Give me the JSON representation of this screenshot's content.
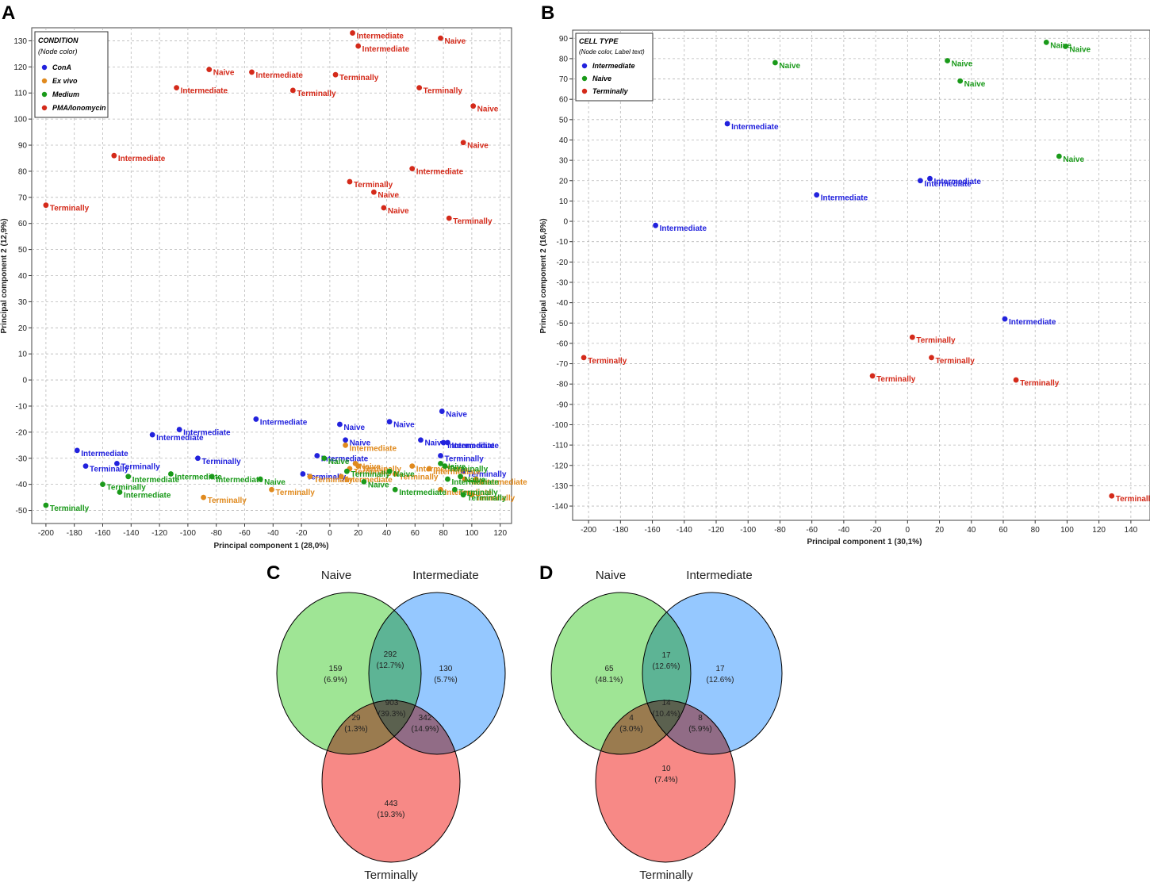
{
  "chart_data": [
    {
      "panel": "A",
      "type": "scatter",
      "xlabel": "Principal component 1 (28,0%)",
      "ylabel": "Principal component 2 (12,9%)",
      "xlim": [
        -210,
        128
      ],
      "ylim": [
        -55,
        135
      ],
      "xticks": [
        -200,
        -180,
        -160,
        -140,
        -120,
        -100,
        -80,
        -60,
        -40,
        -20,
        0,
        20,
        40,
        60,
        80,
        100,
        120
      ],
      "yticks": [
        -50,
        -40,
        -30,
        -20,
        -10,
        0,
        10,
        20,
        30,
        40,
        50,
        60,
        70,
        80,
        90,
        100,
        110,
        120,
        130
      ],
      "grid": true,
      "legend": {
        "title": "CONDITION",
        "subtitle": "(Node color)",
        "location": "top-left",
        "entries": [
          {
            "name": "ConA",
            "color": "#2222dd"
          },
          {
            "name": "Ex vivo",
            "color": "#e08a1e"
          },
          {
            "name": "Medium",
            "color": "#1a9a1a"
          },
          {
            "name": "PMA/Ionomycin",
            "color": "#d42a1a"
          }
        ]
      },
      "series": [
        {
          "name": "PMA/Ionomycin",
          "color": "#d42a1a",
          "points": [
            {
              "x": 16,
              "y": 133,
              "label": "Intermediate"
            },
            {
              "x": 20,
              "y": 128,
              "label": "Intermediate"
            },
            {
              "x": 78,
              "y": 131,
              "label": "Naive"
            },
            {
              "x": -85,
              "y": 119,
              "label": "Naive"
            },
            {
              "x": -55,
              "y": 118,
              "label": "Intermediate"
            },
            {
              "x": 4,
              "y": 117,
              "label": "Terminally"
            },
            {
              "x": -108,
              "y": 112,
              "label": "Intermediate"
            },
            {
              "x": -26,
              "y": 111,
              "label": "Terminally"
            },
            {
              "x": 63,
              "y": 112,
              "label": "Terminally"
            },
            {
              "x": 101,
              "y": 105,
              "label": "Naive"
            },
            {
              "x": 94,
              "y": 91,
              "label": "Naive"
            },
            {
              "x": -152,
              "y": 86,
              "label": "Intermediate"
            },
            {
              "x": 58,
              "y": 81,
              "label": "Intermediate"
            },
            {
              "x": 14,
              "y": 76,
              "label": "Terminally"
            },
            {
              "x": 31,
              "y": 72,
              "label": "Naive"
            },
            {
              "x": 38,
              "y": 66,
              "label": "Naive"
            },
            {
              "x": 84,
              "y": 62,
              "label": "Terminally"
            },
            {
              "x": -200,
              "y": 67,
              "label": "Terminally"
            }
          ]
        },
        {
          "name": "ConA",
          "color": "#2222dd",
          "points": [
            {
              "x": 79,
              "y": -12,
              "label": "Naive"
            },
            {
              "x": -52,
              "y": -15,
              "label": "Intermediate"
            },
            {
              "x": 42,
              "y": -16,
              "label": "Naive"
            },
            {
              "x": 7,
              "y": -17,
              "label": "Naive"
            },
            {
              "x": -106,
              "y": -19,
              "label": "Intermediate"
            },
            {
              "x": -125,
              "y": -21,
              "label": "Intermediate"
            },
            {
              "x": 11,
              "y": -23,
              "label": "Naive"
            },
            {
              "x": 64,
              "y": -23,
              "label": "Naive"
            },
            {
              "x": 80,
              "y": -24,
              "label": "Intermediate"
            },
            {
              "x": 83,
              "y": -24,
              "label": "Intermediate"
            },
            {
              "x": -178,
              "y": -27,
              "label": "Intermediate"
            },
            {
              "x": -9,
              "y": -29,
              "label": "Intermediate"
            },
            {
              "x": 78,
              "y": -29,
              "label": "Terminally"
            },
            {
              "x": -93,
              "y": -30,
              "label": "Terminally"
            },
            {
              "x": -150,
              "y": -32,
              "label": "Terminally"
            },
            {
              "x": -172,
              "y": -33,
              "label": "Terminally"
            },
            {
              "x": 94,
              "y": -35,
              "label": "Terminally"
            },
            {
              "x": -19,
              "y": -36,
              "label": "Terminally"
            }
          ]
        },
        {
          "name": "Ex vivo",
          "color": "#e08a1e",
          "points": [
            {
              "x": 18,
              "y": -32,
              "label": "Naive"
            },
            {
              "x": 20,
              "y": -33,
              "label": "Terminally"
            },
            {
              "x": 58,
              "y": -33,
              "label": "Intermediate"
            },
            {
              "x": 11,
              "y": -25,
              "label": "Intermediate"
            },
            {
              "x": 14,
              "y": -34,
              "label": "Terminally"
            },
            {
              "x": -14,
              "y": -37,
              "label": "Terminally"
            },
            {
              "x": 8,
              "y": -37,
              "label": "Intermediate"
            },
            {
              "x": 46,
              "y": -36,
              "label": "Terminally"
            },
            {
              "x": 70,
              "y": -34,
              "label": "Intermediate"
            },
            {
              "x": 95,
              "y": -38,
              "label": "Naive"
            },
            {
              "x": 103,
              "y": -38,
              "label": "Intermediate"
            },
            {
              "x": 78,
              "y": -42,
              "label": "Intermediate"
            },
            {
              "x": 100,
              "y": -44,
              "label": "Terminally"
            },
            {
              "x": -89,
              "y": -45,
              "label": "Terminally"
            },
            {
              "x": -41,
              "y": -42,
              "label": "Terminally"
            }
          ]
        },
        {
          "name": "Medium",
          "color": "#1a9a1a",
          "points": [
            {
              "x": -4,
              "y": -30,
              "label": "Naive"
            },
            {
              "x": 78,
              "y": -32,
              "label": "Naive"
            },
            {
              "x": 81,
              "y": -33,
              "label": "Terminally"
            },
            {
              "x": 12,
              "y": -35,
              "label": "Terminally"
            },
            {
              "x": 42,
              "y": -35,
              "label": "Naive"
            },
            {
              "x": -112,
              "y": -36,
              "label": "Intermediate"
            },
            {
              "x": -83,
              "y": -37,
              "label": "Intermediate"
            },
            {
              "x": -142,
              "y": -37,
              "label": "Intermediate"
            },
            {
              "x": 92,
              "y": -37,
              "label": "Naive"
            },
            {
              "x": -49,
              "y": -38,
              "label": "Naive"
            },
            {
              "x": 83,
              "y": -38,
              "label": "Intermediate"
            },
            {
              "x": 24,
              "y": -39,
              "label": "Naive"
            },
            {
              "x": -160,
              "y": -40,
              "label": "Terminally"
            },
            {
              "x": 46,
              "y": -42,
              "label": "Intermediate"
            },
            {
              "x": 88,
              "y": -42,
              "label": "Terminally"
            },
            {
              "x": -148,
              "y": -43,
              "label": "Intermediate"
            },
            {
              "x": 94,
              "y": -44,
              "label": "Terminally"
            },
            {
              "x": -200,
              "y": -48,
              "label": "Terminally"
            }
          ]
        }
      ]
    },
    {
      "panel": "B",
      "type": "scatter",
      "xlabel": "Principal component 1 (30,1%)",
      "ylabel": "Principal component 2 (16,8%)",
      "xlim": [
        -210,
        152
      ],
      "ylim": [
        -147,
        94
      ],
      "xticks": [
        -200,
        -180,
        -160,
        -140,
        -120,
        -100,
        -80,
        -60,
        -40,
        -20,
        0,
        20,
        40,
        60,
        80,
        100,
        120,
        140
      ],
      "yticks": [
        -140,
        -130,
        -120,
        -110,
        -100,
        -90,
        -80,
        -70,
        -60,
        -50,
        -40,
        -30,
        -20,
        -10,
        0,
        10,
        20,
        30,
        40,
        50,
        60,
        70,
        80,
        90
      ],
      "grid": true,
      "legend": {
        "title": "CELL TYPE",
        "subtitle": "(Node color, Label text)",
        "location": "top-left",
        "entries": [
          {
            "name": "Intermediate",
            "color": "#2222dd"
          },
          {
            "name": "Naive",
            "color": "#1a9a1a"
          },
          {
            "name": "Terminally",
            "color": "#d42a1a"
          }
        ]
      },
      "series": [
        {
          "name": "Intermediate",
          "color": "#2222dd",
          "points": [
            {
              "x": -113,
              "y": 48,
              "label": "Intermediate"
            },
            {
              "x": 14,
              "y": 21,
              "label": "Intermediate"
            },
            {
              "x": 8,
              "y": 20,
              "label": "Intermediate"
            },
            {
              "x": -57,
              "y": 13,
              "label": "Intermediate"
            },
            {
              "x": -158,
              "y": -2,
              "label": "Intermediate"
            },
            {
              "x": 61,
              "y": -48,
              "label": "Intermediate"
            }
          ]
        },
        {
          "name": "Naive",
          "color": "#1a9a1a",
          "points": [
            {
              "x": 87,
              "y": 88,
              "label": "Naive"
            },
            {
              "x": 99,
              "y": 86,
              "label": "Naive"
            },
            {
              "x": -83,
              "y": 78,
              "label": "Naive"
            },
            {
              "x": 25,
              "y": 79,
              "label": "Naive"
            },
            {
              "x": 33,
              "y": 69,
              "label": "Naive"
            },
            {
              "x": 95,
              "y": 32,
              "label": "Naive"
            }
          ]
        },
        {
          "name": "Terminally",
          "color": "#d42a1a",
          "points": [
            {
              "x": 3,
              "y": -57,
              "label": "Terminally"
            },
            {
              "x": -203,
              "y": -67,
              "label": "Terminally"
            },
            {
              "x": 15,
              "y": -67,
              "label": "Terminally"
            },
            {
              "x": -22,
              "y": -76,
              "label": "Terminally"
            },
            {
              "x": 68,
              "y": -78,
              "label": "Terminally"
            },
            {
              "x": 128,
              "y": -135,
              "label": "Terminally"
            }
          ]
        }
      ]
    },
    {
      "panel": "C",
      "type": "venn",
      "sets": [
        {
          "name": "Naive",
          "color": "#5fd34e"
        },
        {
          "name": "Intermediate",
          "color": "#4ea3ff"
        },
        {
          "name": "Terminally",
          "color": "#f23a36"
        }
      ],
      "regions": {
        "naive_only": {
          "count": "159",
          "pct": "(6.9%)"
        },
        "intermediate_only": {
          "count": "130",
          "pct": "(5.7%)"
        },
        "terminally_only": {
          "count": "443",
          "pct": "(19.3%)"
        },
        "naive_intermediate": {
          "count": "292",
          "pct": "(12.7%)"
        },
        "naive_terminally": {
          "count": "29",
          "pct": "(1.3%)"
        },
        "intermediate_terminally": {
          "count": "342",
          "pct": "(14.9%)"
        },
        "all_three": {
          "count": "903",
          "pct": "(39.3%)"
        }
      }
    },
    {
      "panel": "D",
      "type": "venn",
      "sets": [
        {
          "name": "Naive",
          "color": "#5fd34e"
        },
        {
          "name": "Intermediate",
          "color": "#4ea3ff"
        },
        {
          "name": "Terminally",
          "color": "#f23a36"
        }
      ],
      "regions": {
        "naive_only": {
          "count": "65",
          "pct": "(48.1%)"
        },
        "intermediate_only": {
          "count": "17",
          "pct": "(12.6%)"
        },
        "terminally_only": {
          "count": "10",
          "pct": "(7.4%)"
        },
        "naive_intermediate": {
          "count": "17",
          "pct": "(12.6%)"
        },
        "naive_terminally": {
          "count": "4",
          "pct": "(3.0%)"
        },
        "intermediate_terminally": {
          "count": "8",
          "pct": "(5.9%)"
        },
        "all_three": {
          "count": "14",
          "pct": "(10.4%)"
        }
      }
    }
  ]
}
